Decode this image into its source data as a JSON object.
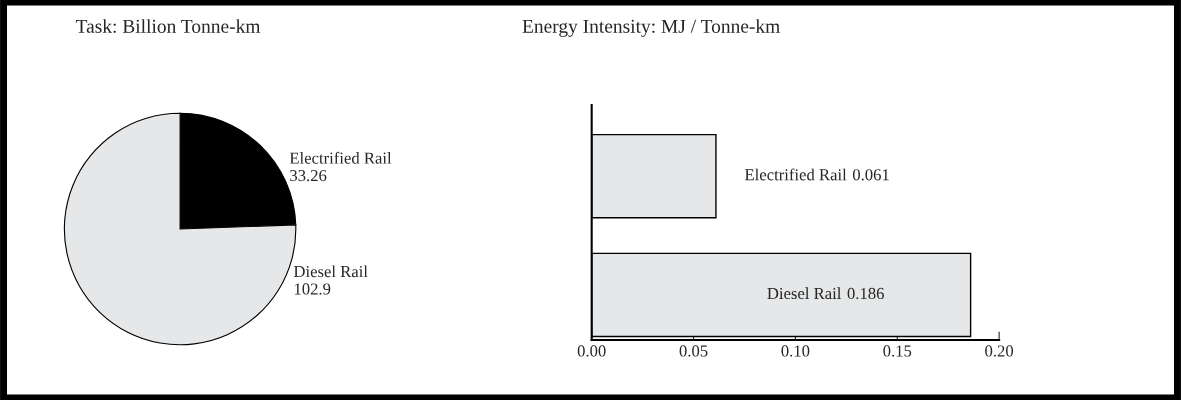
{
  "chart_data": [
    {
      "type": "pie",
      "title": "Task: Billion Tonne-km",
      "categories": [
        "Electrified Rail",
        "Diesel Rail"
      ],
      "values": [
        33.26,
        102.9
      ],
      "colors": [
        "#000000",
        "#e6e7e8"
      ],
      "data_labels": true
    },
    {
      "type": "bar",
      "orientation": "horizontal",
      "title": "Energy Intensity: MJ / Tonne-km",
      "categories": [
        "Electrified Rail",
        "Diesel Rail"
      ],
      "values": [
        0.061,
        0.186
      ],
      "color": "#e6e7e8",
      "xlim": [
        0,
        0.2
      ],
      "xticks": [
        {
          "value": 0,
          "label": "0.00"
        },
        {
          "value": 0.05,
          "label": "0.05"
        },
        {
          "value": 0.1,
          "label": "0.10"
        },
        {
          "value": 0.15,
          "label": "0.15"
        },
        {
          "value": 0.2,
          "label": "0.20"
        }
      ],
      "tick_labels": "x",
      "data_labels": true
    }
  ]
}
